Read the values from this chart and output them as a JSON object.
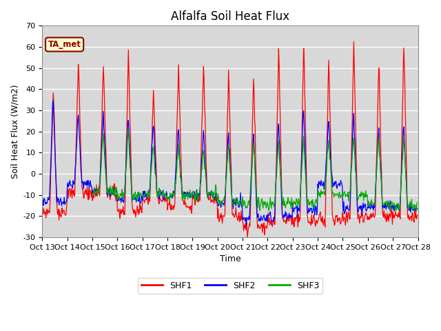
{
  "title": "Alfalfa Soil Heat Flux",
  "xlabel": "Time",
  "ylabel": "Soil Heat Flux (W/m2)",
  "ylim": [
    -30,
    70
  ],
  "annotation_text": "TA_met",
  "legend_labels": [
    "SHF1",
    "SHF2",
    "SHF3"
  ],
  "line_colors": [
    "#ff0000",
    "#0000ff",
    "#00aa00"
  ],
  "xtick_labels": [
    "Oct 13",
    "Oct 14",
    "Oct 15",
    "Oct 16",
    "Oct 17",
    "Oct 18",
    "Oct 19",
    "Oct 20",
    "Oct 21",
    "Oct 22",
    "Oct 23",
    "Oct 24",
    "Oct 25",
    "Oct 26",
    "Oct 27",
    "Oct 28"
  ],
  "background_color": "#d8d8d8",
  "title_fontsize": 12,
  "axis_label_fontsize": 9,
  "tick_fontsize": 8
}
